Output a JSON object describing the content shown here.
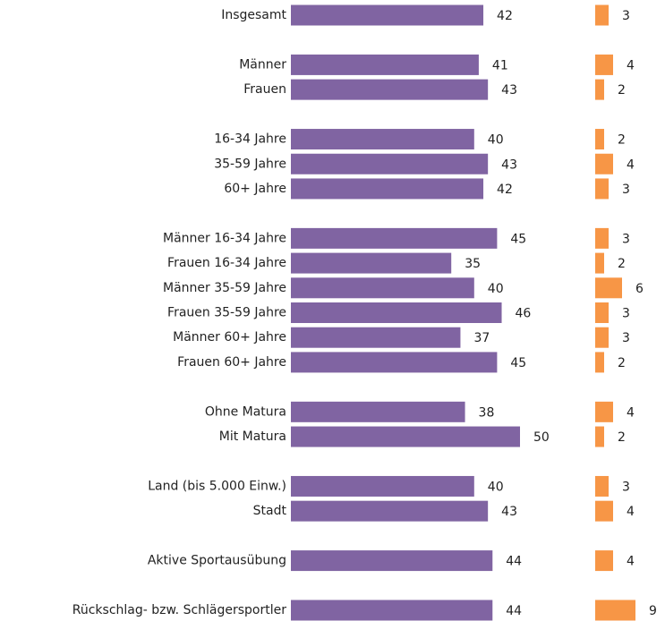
{
  "chart_data": {
    "type": "bar",
    "categories": [
      "Insgesamt",
      null,
      "Männer",
      "Frauen",
      null,
      "16-34 Jahre",
      "35-59 Jahre",
      "60+ Jahre",
      null,
      "Männer 16-34 Jahre",
      "Frauen 16-34 Jahre",
      "Männer 35-59 Jahre",
      "Frauen 35-59 Jahre",
      "Männer 60+ Jahre",
      "Frauen 60+ Jahre",
      null,
      "Ohne Matura",
      "Mit Matura",
      null,
      "Land (bis 5.000 Einw.)",
      "Stadt",
      null,
      "Aktive Sportausübung",
      null,
      "Rückschlag- bzw. Schlägersportler"
    ],
    "series": [
      {
        "color": "#8064a2",
        "values": [
          42,
          null,
          41,
          43,
          null,
          40,
          43,
          42,
          null,
          45,
          35,
          40,
          46,
          37,
          45,
          null,
          38,
          50,
          null,
          40,
          43,
          null,
          44,
          null,
          44
        ]
      },
      {
        "color": "#f79646",
        "values": [
          3,
          null,
          4,
          2,
          null,
          2,
          4,
          3,
          null,
          3,
          2,
          6,
          3,
          3,
          2,
          null,
          4,
          2,
          null,
          3,
          4,
          null,
          4,
          null,
          9
        ]
      }
    ]
  }
}
